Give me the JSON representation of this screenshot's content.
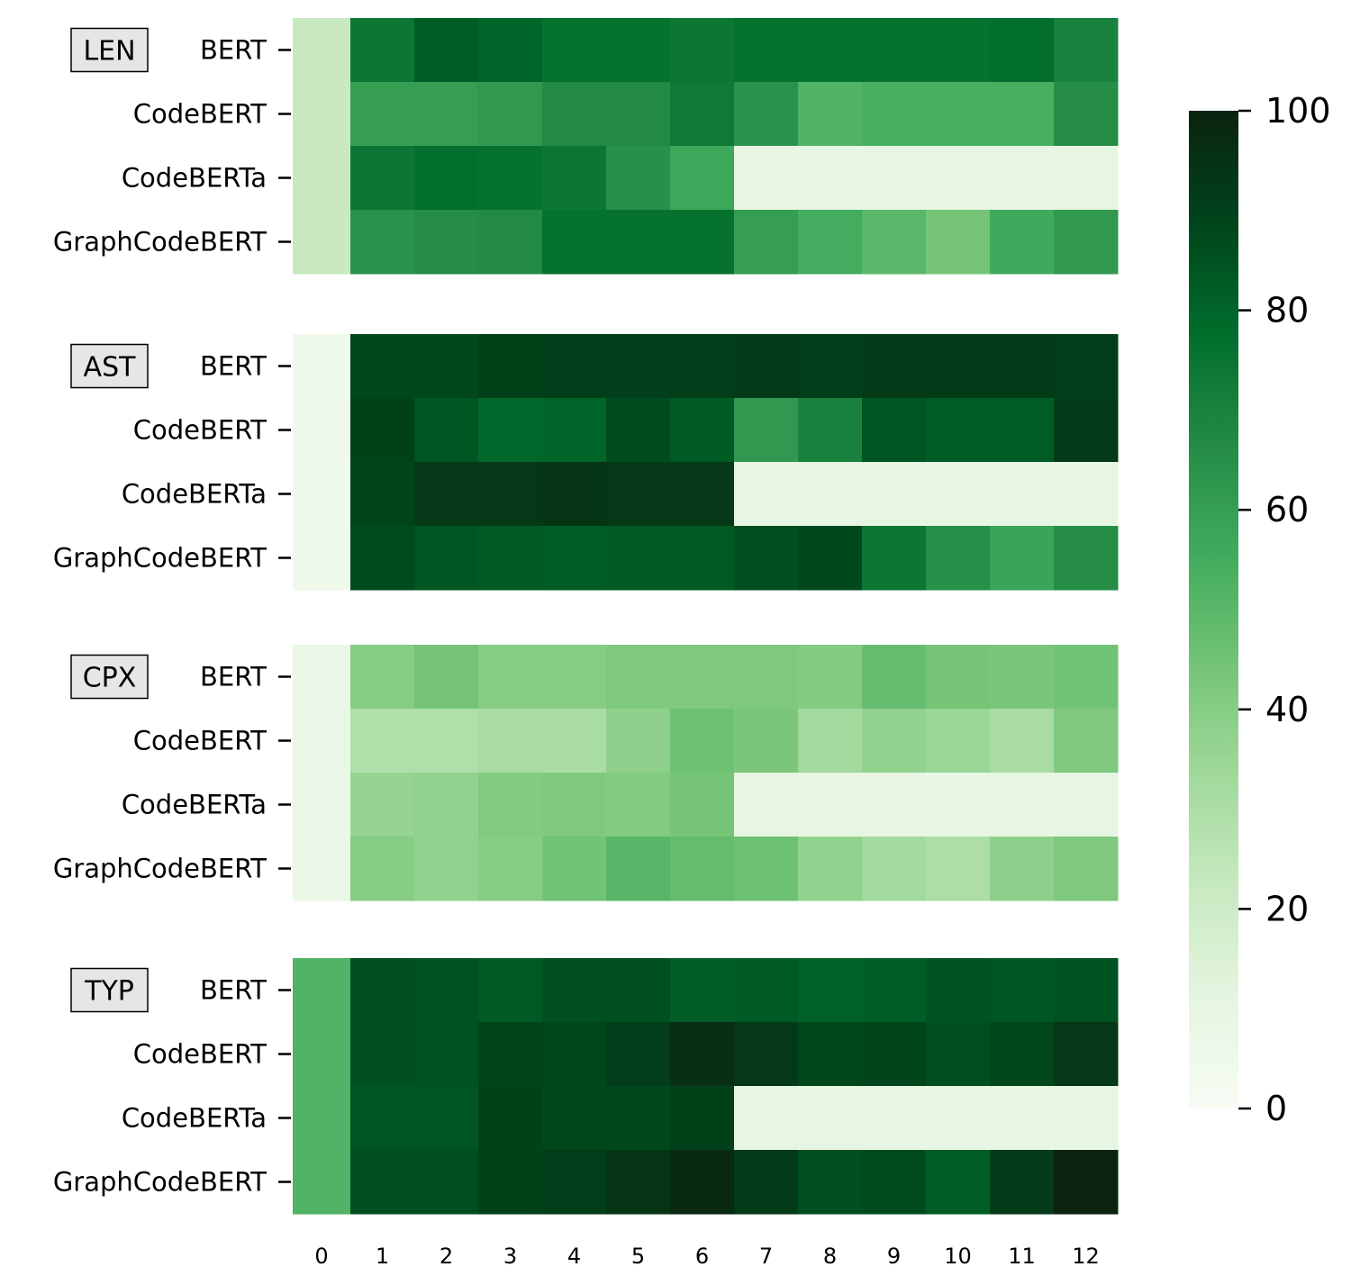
{
  "chart_data": {
    "type": "heatmap",
    "title": "",
    "xlabel": "",
    "ylabel": "",
    "x_tick_labels": [
      "0",
      "1",
      "2",
      "3",
      "4",
      "5",
      "6",
      "7",
      "8",
      "9",
      "10",
      "11",
      "12"
    ],
    "models": [
      "BERT",
      "CodeBERT",
      "CodeBERTa",
      "GraphCodeBERT"
    ],
    "colorbar": {
      "range": [
        0,
        100
      ],
      "tick_labels": [
        "0",
        "20",
        "40",
        "60",
        "80",
        "100"
      ],
      "tick_values": [
        0,
        20,
        40,
        60,
        80,
        100
      ]
    },
    "colormap": "Greens",
    "colormap_stops": [
      "#f7fcf5",
      "#e5f5e0",
      "#c7e9c0",
      "#a1d99b",
      "#74c476",
      "#41ab5d",
      "#238b45",
      "#006d2c",
      "#00441b",
      "#0b230f"
    ],
    "missing_note": "",
    "panels": [
      {
        "name": "LEN",
        "rows": [
          {
            "model": "BERT",
            "values": [
              22,
              74,
              82,
              80,
              76,
              76,
              74,
              76,
              76,
              76,
              76,
              77,
              70
            ]
          },
          {
            "model": "CodeBERT",
            "values": [
              22,
              60,
              60,
              62,
              67,
              67,
              73,
              64,
              52,
              54,
              54,
              54,
              66
            ]
          },
          {
            "model": "CodeBERTa",
            "values": [
              22,
              74,
              77,
              76,
              74,
              65,
              57,
              10,
              10,
              10,
              10,
              10,
              10
            ]
          },
          {
            "model": "GraphCodeBERT",
            "values": [
              22,
              64,
              66,
              67,
              76,
              76,
              76,
              60,
              55,
              50,
              44,
              56,
              62
            ]
          }
        ]
      },
      {
        "name": "AST",
        "rows": [
          {
            "model": "BERT",
            "values": [
              5,
              88,
              88,
              90,
              91,
              91,
              91,
              92,
              91,
              92,
              92,
              92,
              91
            ]
          },
          {
            "model": "CodeBERT",
            "values": [
              5,
              90,
              84,
              79,
              80,
              87,
              83,
              62,
              70,
              84,
              82,
              82,
              92
            ]
          },
          {
            "model": "CodeBERTa",
            "values": [
              5,
              89,
              93,
              93,
              94,
              93,
              93,
              10,
              10,
              10,
              10,
              10,
              10
            ]
          },
          {
            "model": "GraphCodeBERT",
            "values": [
              5,
              87,
              84,
              83,
              82,
              83,
              83,
              86,
              88,
              74,
              65,
              58,
              66
            ]
          }
        ]
      },
      {
        "name": "CPX",
        "rows": [
          {
            "model": "BERT",
            "values": [
              8,
              40,
              44,
              40,
              40,
              42,
              42,
              42,
              41,
              47,
              44,
              43,
              45
            ]
          },
          {
            "model": "CodeBERT",
            "values": [
              8,
              29,
              29,
              31,
              31,
              38,
              46,
              43,
              33,
              37,
              35,
              31,
              42
            ]
          },
          {
            "model": "CodeBERTa",
            "values": [
              8,
              36,
              37,
              41,
              42,
              41,
              44,
              10,
              10,
              10,
              10,
              10,
              10
            ]
          },
          {
            "model": "GraphCodeBERT",
            "values": [
              8,
              40,
              37,
              40,
              45,
              51,
              48,
              46,
              37,
              33,
              30,
              38,
              42
            ]
          }
        ]
      },
      {
        "name": "TYP",
        "rows": [
          {
            "model": "BERT",
            "values": [
              52,
              86,
              85,
              83,
              86,
              86,
              82,
              83,
              81,
              82,
              85,
              84,
              85
            ]
          },
          {
            "model": "CodeBERT",
            "values": [
              52,
              86,
              85,
              89,
              88,
              91,
              96,
              93,
              88,
              89,
              86,
              88,
              93
            ]
          },
          {
            "model": "CodeBERTa",
            "values": [
              52,
              84,
              84,
              90,
              88,
              88,
              90,
              10,
              10,
              10,
              10,
              10,
              10
            ]
          },
          {
            "model": "GraphCodeBERT",
            "values": [
              52,
              86,
              86,
              90,
              91,
              94,
              98,
              92,
              86,
              87,
              82,
              92,
              100
            ]
          }
        ]
      }
    ]
  }
}
